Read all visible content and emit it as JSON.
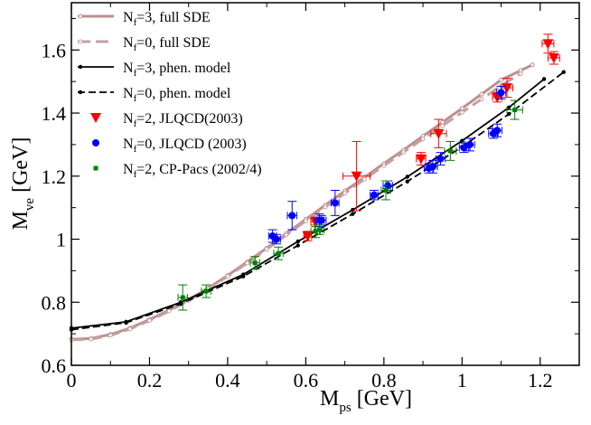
{
  "chart_data": {
    "type": "scatter",
    "xlim": [
      0,
      1.3
    ],
    "ylim": [
      0.6,
      1.75
    ],
    "xticks": [
      0,
      0.2,
      0.4,
      0.6,
      0.8,
      1,
      1.2
    ],
    "xtick_labels": [
      "0",
      "0.2",
      "0.4",
      "0.6",
      "0.8",
      "1",
      "1.2"
    ],
    "yticks": [
      0.6,
      0.8,
      1,
      1.2,
      1.4,
      1.6
    ],
    "ytick_labels": [
      "0.6",
      "0.8",
      "1",
      "1.2",
      "1.4",
      "1.6"
    ],
    "xlabel": {
      "main": "M",
      "sub": "ps",
      "unit": " [GeV]"
    },
    "ylabel": {
      "main": "M",
      "sub": "ve",
      "unit": " [GeV]"
    },
    "legend_position": "top-left",
    "colors": {
      "sde3": "#bc8f8f",
      "sde0": "#c4a0a0",
      "phen": "#000000",
      "jlqcd2": "#ff0000",
      "jlqcd0": "#0000ff",
      "cppacs": "#008000"
    },
    "series": [
      {
        "key": "sde3",
        "legend": {
          "pre": "N",
          "sub": "f",
          "post": "=3, full SDE"
        },
        "style": "solid",
        "x": [
          0,
          0.05,
          0.1,
          0.15,
          0.2,
          0.25,
          0.3,
          0.35,
          0.4,
          0.45,
          0.5,
          0.55,
          0.6,
          0.65,
          0.7,
          0.75,
          0.8,
          0.85,
          0.9,
          0.95,
          1.0,
          1.05,
          1.1,
          1.15,
          1.18
        ],
        "y": [
          0.683,
          0.685,
          0.698,
          0.718,
          0.745,
          0.775,
          0.808,
          0.845,
          0.885,
          0.928,
          0.972,
          1.018,
          1.063,
          1.108,
          1.153,
          1.196,
          1.24,
          1.283,
          1.327,
          1.371,
          1.415,
          1.46,
          1.505,
          1.535,
          1.553
        ]
      },
      {
        "key": "sde0",
        "legend": {
          "pre": "N",
          "sub": "f",
          "post": "=0, full SDE"
        },
        "style": "dashed",
        "x": [
          0,
          0.05,
          0.1,
          0.15,
          0.2,
          0.25,
          0.3,
          0.35,
          0.4,
          0.45,
          0.5,
          0.55,
          0.6,
          0.65,
          0.7,
          0.75,
          0.8,
          0.85,
          0.9,
          0.95,
          1.0,
          1.05,
          1.1,
          1.15
        ],
        "y": [
          0.681,
          0.683,
          0.695,
          0.715,
          0.742,
          0.772,
          0.805,
          0.842,
          0.882,
          0.924,
          0.968,
          1.013,
          1.058,
          1.102,
          1.146,
          1.19,
          1.233,
          1.276,
          1.318,
          1.36,
          1.402,
          1.444,
          1.487,
          1.525
        ]
      },
      {
        "key": "phen3",
        "legend": {
          "pre": "N",
          "sub": "f",
          "post": "=3, phen. model"
        },
        "style": "solid-black",
        "x": [
          0,
          0.14,
          0.28,
          0.44,
          0.58,
          0.72,
          0.86,
          1.0,
          1.12,
          1.21
        ],
        "y": [
          0.718,
          0.738,
          0.8,
          0.888,
          0.993,
          1.093,
          1.198,
          1.312,
          1.418,
          1.508
        ]
      },
      {
        "key": "phen0",
        "legend": {
          "pre": "N",
          "sub": "f",
          "post": "=0, phen. model"
        },
        "style": "dashed-black",
        "x": [
          0,
          0.14,
          0.28,
          0.44,
          0.58,
          0.72,
          0.86,
          1.0,
          1.12,
          1.26
        ],
        "y": [
          0.713,
          0.735,
          0.795,
          0.882,
          0.98,
          1.08,
          1.183,
          1.293,
          1.397,
          1.53
        ]
      },
      {
        "key": "jlqcd2",
        "legend": {
          "pre": "N",
          "sub": "f",
          "post": "=2, JLQCD(2003)"
        },
        "marker": "triangle-down",
        "points": [
          {
            "x": 0.605,
            "y": 1.01,
            "xerr": 0.01,
            "yerr": 0.015
          },
          {
            "x": 0.625,
            "y": 1.055,
            "xerr": 0.012,
            "yerr": 0.015
          },
          {
            "x": 0.73,
            "y": 1.2,
            "xerr": 0.035,
            "yerr": 0.11
          },
          {
            "x": 0.895,
            "y": 1.255,
            "xerr": 0.012,
            "yerr": 0.02
          },
          {
            "x": 0.94,
            "y": 1.335,
            "xerr": 0.02,
            "yerr": 0.045
          },
          {
            "x": 1.09,
            "y": 1.45,
            "xerr": 0.012,
            "yerr": 0.015
          },
          {
            "x": 1.115,
            "y": 1.48,
            "xerr": 0.015,
            "yerr": 0.03
          },
          {
            "x": 1.22,
            "y": 1.62,
            "xerr": 0.015,
            "yerr": 0.03
          },
          {
            "x": 1.235,
            "y": 1.575,
            "xerr": 0.015,
            "yerr": 0.02
          }
        ]
      },
      {
        "key": "jlqcd0",
        "legend": {
          "pre": "N",
          "sub": "f",
          "post": "=0, JLQCD (2003)"
        },
        "marker": "circle",
        "points": [
          {
            "x": 0.515,
            "y": 1.01,
            "xerr": 0.01,
            "yerr": 0.02
          },
          {
            "x": 0.525,
            "y": 1.0,
            "xerr": 0.01,
            "yerr": 0.015
          },
          {
            "x": 0.565,
            "y": 1.075,
            "xerr": 0.012,
            "yerr": 0.045
          },
          {
            "x": 0.635,
            "y": 1.06,
            "xerr": 0.012,
            "yerr": 0.02
          },
          {
            "x": 0.64,
            "y": 1.06,
            "xerr": 0.012,
            "yerr": 0.015
          },
          {
            "x": 0.675,
            "y": 1.115,
            "xerr": 0.01,
            "yerr": 0.04
          },
          {
            "x": 0.775,
            "y": 1.14,
            "xerr": 0.01,
            "yerr": 0.015
          },
          {
            "x": 0.81,
            "y": 1.17,
            "xerr": 0.012,
            "yerr": 0.015
          },
          {
            "x": 0.915,
            "y": 1.225,
            "xerr": 0.012,
            "yerr": 0.015
          },
          {
            "x": 0.925,
            "y": 1.23,
            "xerr": 0.012,
            "yerr": 0.02
          },
          {
            "x": 0.945,
            "y": 1.255,
            "xerr": 0.012,
            "yerr": 0.02
          },
          {
            "x": 1.005,
            "y": 1.29,
            "xerr": 0.012,
            "yerr": 0.015
          },
          {
            "x": 1.02,
            "y": 1.3,
            "xerr": 0.012,
            "yerr": 0.02
          },
          {
            "x": 1.08,
            "y": 1.335,
            "xerr": 0.012,
            "yerr": 0.015
          },
          {
            "x": 1.09,
            "y": 1.345,
            "xerr": 0.012,
            "yerr": 0.02
          },
          {
            "x": 1.1,
            "y": 1.465,
            "xerr": 0.012,
            "yerr": 0.02
          }
        ]
      },
      {
        "key": "cppacs",
        "legend": {
          "pre": "N",
          "sub": "f",
          "post": "=2, CP-Pacs (2002/4)"
        },
        "marker": "square",
        "points": [
          {
            "x": 0.285,
            "y": 0.815,
            "xerr": 0.012,
            "yerr": 0.04
          },
          {
            "x": 0.345,
            "y": 0.835,
            "xerr": 0.012,
            "yerr": 0.02
          },
          {
            "x": 0.47,
            "y": 0.925,
            "xerr": 0.012,
            "yerr": 0.02
          },
          {
            "x": 0.53,
            "y": 0.955,
            "xerr": 0.012,
            "yerr": 0.02
          },
          {
            "x": 0.625,
            "y": 1.025,
            "xerr": 0.012,
            "yerr": 0.02
          },
          {
            "x": 0.635,
            "y": 1.03,
            "xerr": 0.012,
            "yerr": 0.015
          },
          {
            "x": 0.805,
            "y": 1.155,
            "xerr": 0.012,
            "yerr": 0.03
          },
          {
            "x": 0.97,
            "y": 1.28,
            "xerr": 0.015,
            "yerr": 0.03
          },
          {
            "x": 1.135,
            "y": 1.41,
            "xerr": 0.02,
            "yerr": 0.03
          }
        ]
      }
    ]
  }
}
